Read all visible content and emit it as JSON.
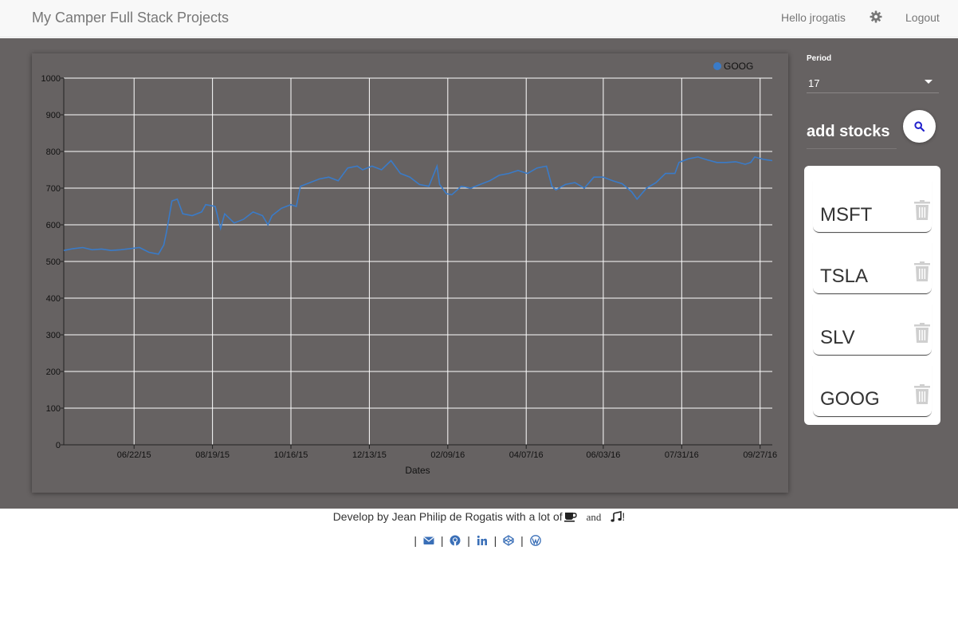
{
  "navbar": {
    "brand": "My Camper Full Stack Projects",
    "greeting": "Hello jrogatis",
    "settings_icon": "gear-icon",
    "logout": "Logout"
  },
  "controls": {
    "period_label": "Period",
    "period_value": "17",
    "add_stocks_placeholder": "add stocks",
    "search_icon": "search-icon"
  },
  "stocks": [
    {
      "symbol": "MSFT",
      "icon": "trash-icon"
    },
    {
      "symbol": "TSLA",
      "icon": "trash-icon"
    },
    {
      "symbol": "SLV",
      "icon": "trash-icon"
    },
    {
      "symbol": "GOOG",
      "icon": "trash-icon"
    }
  ],
  "footer": {
    "credit_before": "Develop by Jean Philip de Rogatis with a lot of",
    "credit_and": "and",
    "credit_end": "!",
    "separator": "|",
    "icons": [
      "coffee-icon",
      "music-icon",
      "email-icon",
      "github-icon",
      "linkedin-icon",
      "codepen-icon",
      "wordpress-icon"
    ]
  },
  "colors": {
    "series": "#3a7bc8",
    "background": "#666262",
    "link": "#3a6fb7"
  },
  "chart_data": {
    "type": "line",
    "xlabel": "Dates",
    "ylim": [
      0,
      1000
    ],
    "yticks": [
      0,
      100,
      200,
      300,
      400,
      500,
      600,
      700,
      800,
      900,
      1000
    ],
    "xticks": [
      "06/22/15",
      "08/19/15",
      "10/16/15",
      "12/13/15",
      "02/09/16",
      "04/07/16",
      "06/03/16",
      "07/31/16",
      "09/27/16"
    ],
    "x_range": [
      "2015-05-01",
      "2016-10-06"
    ],
    "grid": true,
    "legend_position": "top-right",
    "series": [
      {
        "name": "GOOG",
        "points": [
          [
            "2015-05-01",
            530
          ],
          [
            "2015-05-08",
            535
          ],
          [
            "2015-05-15",
            538
          ],
          [
            "2015-05-22",
            532
          ],
          [
            "2015-05-29",
            534
          ],
          [
            "2015-06-05",
            530
          ],
          [
            "2015-06-12",
            532
          ],
          [
            "2015-06-19",
            535
          ],
          [
            "2015-06-26",
            538
          ],
          [
            "2015-07-03",
            525
          ],
          [
            "2015-07-10",
            520
          ],
          [
            "2015-07-14",
            545
          ],
          [
            "2015-07-16",
            580
          ],
          [
            "2015-07-20",
            665
          ],
          [
            "2015-07-24",
            670
          ],
          [
            "2015-07-28",
            630
          ],
          [
            "2015-08-04",
            625
          ],
          [
            "2015-08-11",
            635
          ],
          [
            "2015-08-14",
            655
          ],
          [
            "2015-08-21",
            650
          ],
          [
            "2015-08-25",
            590
          ],
          [
            "2015-08-28",
            630
          ],
          [
            "2015-09-04",
            605
          ],
          [
            "2015-09-11",
            615
          ],
          [
            "2015-09-18",
            635
          ],
          [
            "2015-09-25",
            625
          ],
          [
            "2015-09-29",
            600
          ],
          [
            "2015-10-02",
            625
          ],
          [
            "2015-10-09",
            645
          ],
          [
            "2015-10-16",
            655
          ],
          [
            "2015-10-20",
            650
          ],
          [
            "2015-10-23",
            705
          ],
          [
            "2015-10-30",
            715
          ],
          [
            "2015-11-06",
            725
          ],
          [
            "2015-11-13",
            730
          ],
          [
            "2015-11-20",
            720
          ],
          [
            "2015-11-27",
            755
          ],
          [
            "2015-12-04",
            760
          ],
          [
            "2015-12-08",
            750
          ],
          [
            "2015-12-15",
            760
          ],
          [
            "2015-12-22",
            750
          ],
          [
            "2015-12-29",
            775
          ],
          [
            "2016-01-05",
            740
          ],
          [
            "2016-01-12",
            730
          ],
          [
            "2016-01-19",
            710
          ],
          [
            "2016-01-26",
            705
          ],
          [
            "2016-02-01",
            760
          ],
          [
            "2016-02-03",
            710
          ],
          [
            "2016-02-08",
            685
          ],
          [
            "2016-02-12",
            682
          ],
          [
            "2016-02-19",
            705
          ],
          [
            "2016-02-26",
            700
          ],
          [
            "2016-03-04",
            710
          ],
          [
            "2016-03-11",
            720
          ],
          [
            "2016-03-18",
            735
          ],
          [
            "2016-03-25",
            740
          ],
          [
            "2016-04-01",
            748
          ],
          [
            "2016-04-08",
            740
          ],
          [
            "2016-04-15",
            755
          ],
          [
            "2016-04-22",
            760
          ],
          [
            "2016-04-26",
            705
          ],
          [
            "2016-04-29",
            695
          ],
          [
            "2016-05-06",
            710
          ],
          [
            "2016-05-13",
            715
          ],
          [
            "2016-05-20",
            700
          ],
          [
            "2016-05-27",
            730
          ],
          [
            "2016-06-03",
            730
          ],
          [
            "2016-06-10",
            720
          ],
          [
            "2016-06-17",
            712
          ],
          [
            "2016-06-24",
            690
          ],
          [
            "2016-06-28",
            670
          ],
          [
            "2016-07-05",
            700
          ],
          [
            "2016-07-12",
            715
          ],
          [
            "2016-07-19",
            740
          ],
          [
            "2016-07-26",
            740
          ],
          [
            "2016-07-29",
            770
          ],
          [
            "2016-08-05",
            780
          ],
          [
            "2016-08-12",
            785
          ],
          [
            "2016-08-19",
            777
          ],
          [
            "2016-08-26",
            770
          ],
          [
            "2016-09-02",
            770
          ],
          [
            "2016-09-09",
            772
          ],
          [
            "2016-09-16",
            765
          ],
          [
            "2016-09-20",
            770
          ],
          [
            "2016-09-23",
            785
          ],
          [
            "2016-09-30",
            778
          ],
          [
            "2016-10-06",
            775
          ]
        ]
      }
    ]
  }
}
